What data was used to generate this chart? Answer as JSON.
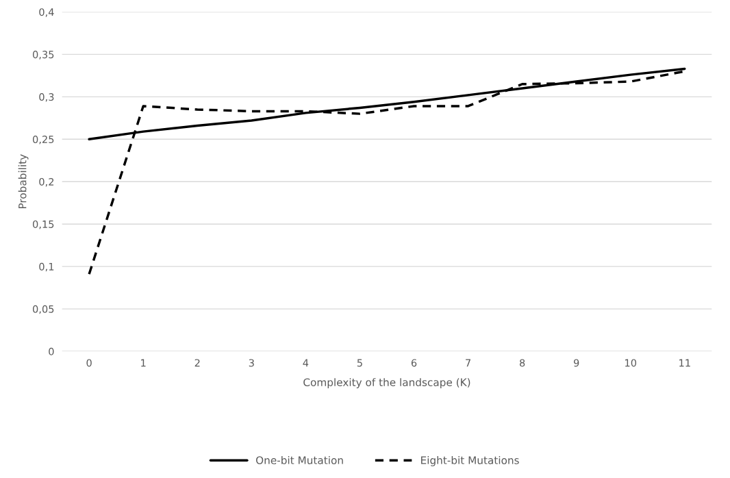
{
  "chart_data": {
    "type": "line",
    "xlabel": "Complexity of the landscape (K)",
    "ylabel": "Probability",
    "categories": [
      "0",
      "1",
      "2",
      "3",
      "4",
      "5",
      "6",
      "7",
      "8",
      "9",
      "10",
      "11"
    ],
    "series": [
      {
        "name": "One-bit Mutation",
        "color": "#000000",
        "line_style": "solid",
        "values": [
          0.25,
          0.259,
          0.266,
          0.272,
          0.281,
          0.287,
          0.294,
          0.302,
          0.31,
          0.318,
          0.326,
          0.333
        ]
      },
      {
        "name": "Eight-bit Mutations",
        "color": "#000000",
        "line_style": "dashed",
        "values": [
          0.091,
          0.289,
          0.285,
          0.283,
          0.283,
          0.28,
          0.289,
          0.289,
          0.315,
          0.316,
          0.318,
          0.33
        ]
      }
    ],
    "ylim": [
      0,
      0.4
    ],
    "yticks": [
      {
        "value": 0,
        "label": "0"
      },
      {
        "value": 0.05,
        "label": "0,05"
      },
      {
        "value": 0.1,
        "label": "0,1"
      },
      {
        "value": 0.15,
        "label": "0,15"
      },
      {
        "value": 0.2,
        "label": "0,2"
      },
      {
        "value": 0.25,
        "label": "0,25"
      },
      {
        "value": 0.3,
        "label": "0,3"
      },
      {
        "value": 0.35,
        "label": "0,35"
      },
      {
        "value": 0.4,
        "label": "0,4"
      }
    ],
    "grid": "y",
    "legend": "bottom",
    "marker": "none"
  }
}
